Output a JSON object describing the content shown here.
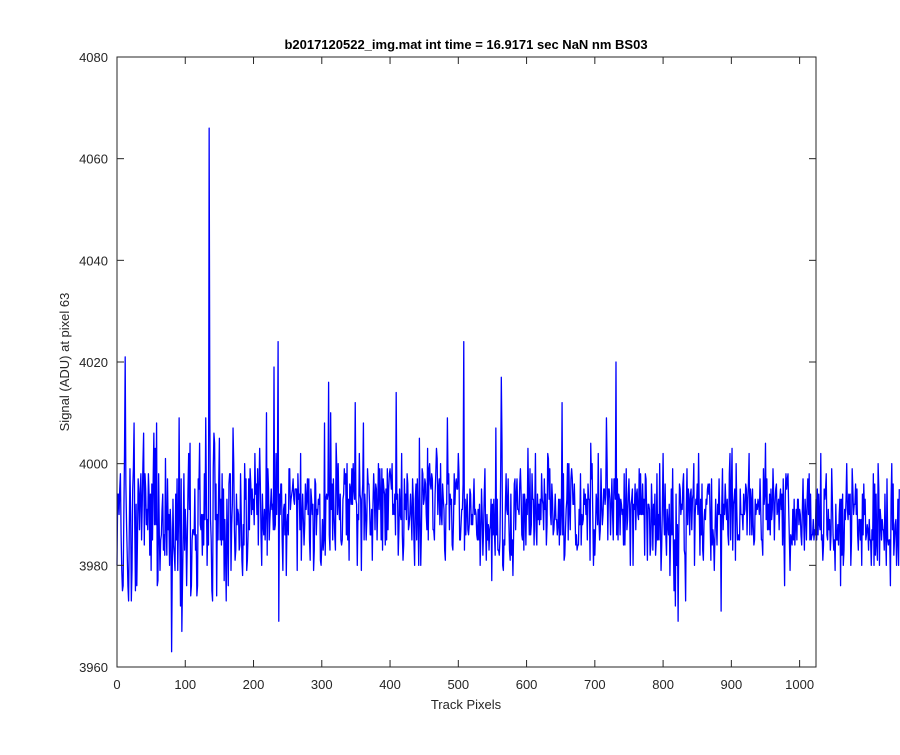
{
  "chart_data": {
    "type": "line",
    "title": "b2017120522_img.mat int time = 16.9171 sec  NaN nm BS03",
    "xlabel": "Track Pixels",
    "ylabel": "Signal (ADU) at pixel 63",
    "xlim": [
      0,
      1024
    ],
    "ylim": [
      3960,
      4080
    ],
    "xticks": [
      0,
      100,
      200,
      300,
      400,
      500,
      600,
      700,
      800,
      900,
      1000
    ],
    "yticks": [
      3960,
      3980,
      4000,
      4020,
      4040,
      4060,
      4080
    ],
    "grid": false,
    "line_color": "#0000ff",
    "n_points": 1024,
    "baseline_mean": 3992,
    "noise_range": [
      3963,
      4024
    ],
    "peaks": [
      {
        "x": 12,
        "y": 4021
      },
      {
        "x": 80,
        "y": 3963
      },
      {
        "x": 136,
        "y": 4066
      },
      {
        "x": 234,
        "y": 4024
      },
      {
        "x": 237,
        "y": 3969
      },
      {
        "x": 520,
        "y": 4024
      },
      {
        "x": 810,
        "y": 3969
      }
    ],
    "series": [
      {
        "x_start": 0,
        "x_step": 1,
        "values": [
          3980,
          3994,
          3994,
          3990,
          3995,
          3998,
          3986,
          3979,
          3975,
          3976,
          3990,
          4002,
          4021,
          3996,
          3988,
          3982,
          3976,
          3973,
          3987,
          3999,
          3990,
          3973,
          3979,
          3995,
          3999,
          4008,
          3988,
          3975,
          3992,
          3976,
          3985,
          3997,
          3994,
          3987,
          3995,
          3998,
          3985,
          3992,
          4000,
          4006,
          3984,
          3998,
          3995,
          3988,
          3991,
          3987,
          3998,
          3994,
          3982,
          3994,
          3979,
          3996,
          3985,
          3997,
          4006,
          3988,
          4003,
          3988,
          4008,
          3976,
          3977,
          3998,
          3986,
          3979,
          3985,
          3986,
          3991,
          3994,
          3983,
          3986,
          3982,
          4001,
          3988,
          3982,
          3997,
          3987,
          3990,
          3980,
          3991,
          3987,
          3963,
          3980,
          3993,
          3984,
          3982,
          3979,
          3994,
          3985,
          3997,
          3979,
          3988,
          4009,
          3988,
          3972,
          3997,
          3967,
          3977,
          3986,
          3998,
          3983,
          3991,
          3987,
          3976,
          3985,
          3995,
          4002,
          3991,
          4004,
          3974,
          3976,
          3985,
          3987,
          3987,
          3986,
          3995,
          3983,
          3986,
          3974,
          3976,
          3997,
          3995,
          4004,
          3988,
          3987,
          3990,
          3982,
          3990,
          3984,
          3998,
          3989,
          4009,
          3993,
          3980,
          3989,
          3984,
          4066,
          4009,
          3989,
          3985,
          3975,
          3973,
          3999,
          4006,
          4004,
          3989,
          3996,
          3974,
          3990,
          3985,
          3996,
          4005,
          3985,
          3993,
          3984,
          3998,
          3985,
          3995,
          3977,
          3989,
          3982,
          3973,
          3993,
          3986,
          3976,
          3996,
          3998,
          3998,
          3979,
          3988,
          3992,
          4007,
          4000,
          3987,
          3981,
          3983,
          3994,
          3988,
          3991,
          3990,
          3983,
          3984,
          3998,
          3990,
          3981,
          3978,
          3988,
          3984,
          4000,
          3993,
          3997,
          3979,
          3981,
          3986,
          3997,
          3987,
          3999,
          3996,
          3990,
          3995,
          3991,
          3993,
          3988,
          4002,
          3994,
          3996,
          3990,
          3999,
          3984,
          3995,
          4003,
          3996,
          3986,
          3980,
          3994,
          3988,
          3986,
          3991,
          3985,
          3990,
          4010,
          3982,
          3999,
          3995,
          3985,
          3989,
          3992,
          3995,
          3991,
          3992,
          3987,
          4019,
          3987,
          3988,
          4002,
          3990,
          3999,
          4024,
          3969,
          3994,
          3990,
          3996,
          3996,
          3985,
          3979,
          3991,
          3992,
          3986,
          3994,
          3978,
          3988,
          3990,
          3986,
          3999,
          3999,
          3991,
          3993,
          3994,
          3995,
          3997,
          3993,
          3992,
          3995,
          3995,
          3995,
          3979,
          3998,
          3993,
          3994,
          3987,
          4002,
          3981,
          3989,
          3994,
          3989,
          3984,
          3988,
          3996,
          3991,
          3993,
          3997,
          3990,
          3997,
          3985,
          3981,
          3995,
          3993,
          3990,
          3992,
          3979,
          3983,
          3997,
          3996,
          3986,
          3991,
          3990,
          3993,
          3992,
          3994,
          3981,
          3980,
          3984,
          3989,
          3983,
          3985,
          4008,
          3982,
          3993,
          3994,
          3993,
          3994,
          4016,
          3986,
          3983,
          4010,
          3991,
          3996,
          3985,
          3997,
          3990,
          3986,
          3983,
          4004,
          3999,
          3990,
          4000,
          3992,
          3989,
          3994,
          3985,
          3984,
          3985,
          3993,
          3994,
          3999,
          3996,
          3998,
          3986,
          4000,
          3985,
          3993,
          3981,
          3996,
          3995,
          3992,
          3999,
          3992,
          4000,
          3995,
          3993,
          4012,
          3993,
          3992,
          3980,
          3990,
          3989,
          4002,
          3994,
          3993,
          3979,
          3993,
          3996,
          4008,
          3985,
          3994,
          3991,
          3985,
          3989,
          3999,
          3996,
          3996,
          3992,
          3986,
          3986,
          3991,
          3981,
          3992,
          3998,
          3994,
          3987,
          3996,
          3995,
          3985,
          3992,
          4000,
          3991,
          3999,
          3994,
          3985,
          3999,
          3983,
          3997,
          3995,
          3994,
          3984,
          3995,
          3985,
          3999,
          3987,
          3995,
          3998,
          3999,
          3997,
          3995,
          4000,
          3990,
          3992,
          3990,
          3994,
          3986,
          4014,
          3993,
          3994,
          3982,
          3987,
          3995,
          3990,
          3989,
          4002,
          3986,
          3981,
          3984,
          3997,
          3991,
          3994,
          3989,
          3998,
          3996,
          3987,
          3988,
          3990,
          3994,
          3990,
          3985,
          3997,
          3993,
          3985,
          3980,
          3993,
          3996,
          3985,
          3997,
          3990,
          3980,
          4005,
          3990,
          3980,
          3987,
          3999,
          3998,
          3992,
          3993,
          3997,
          3996,
          3990,
          3987,
          4003,
          3985,
          3999,
          4000,
          3996,
          3995,
          3998,
          3997,
          3987,
          3987,
          3985,
          3994,
          3998,
          4003,
          4001,
          3990,
          3995,
          3997,
          3988,
          4000,
          3990,
          3988,
          3996,
          3993,
          3991,
          3983,
          3981,
          3992,
          3992,
          4009,
          3996,
          3998,
          3987,
          3994,
          3992,
          3993,
          3984,
          3983,
          3989,
          3998,
          3992,
          3996,
          3997,
          3995,
          3995,
          4002,
          3998,
          3985,
          3985,
          3988,
          3991,
          3991,
          3996,
          4024,
          3983,
          3993,
          3986,
          3991,
          3994,
          3987,
          3986,
          3988,
          3995,
          3994,
          3988,
          3990,
          3988,
          3992,
          3997,
          3990,
          3991,
          3990,
          3986,
          3985,
          3991,
          3985,
          3992,
          3980,
          3986,
          3995,
          3990,
          3982,
          3987,
          3994,
          3999,
          3987,
          3981,
          3990,
          3985,
          3988,
          3983,
          3987,
          3988,
          3993,
          3977,
          3992,
          3986,
          3993,
          3986,
          3982,
          4007,
          3986,
          3993,
          3983,
          3983,
          3982,
          3985,
          3997,
          4017,
          4004,
          3980,
          3979,
          3985,
          3984,
          3992,
          3998,
          3991,
          3990,
          3997,
          3989,
          3983,
          3981,
          3994,
          3982,
          3985,
          3978,
          3986,
          3996,
          3997,
          3987,
          3994,
          3997,
          3991,
          3991,
          3990,
          3996,
          3999,
          3994,
          3986,
          3985,
          3994,
          3983,
          3994,
          3992,
          3984,
          3993,
          3990,
          4003,
          3993,
          3986,
          3999,
          3986,
          3988,
          3998,
          3993,
          3993,
          3984,
          3991,
          4002,
          3987,
          3984,
          3994,
          3989,
          3992,
          3988,
          3993,
          3989,
          3998,
          3993,
          3992,
          3987,
          3997,
          3991,
          3994,
          3984,
          3988,
          4002,
          4001,
          3993,
          3999,
          3990,
          3988,
          3996,
          3993,
          3986,
          3987,
          3990,
          3994,
          3989,
          3989,
          3986,
          3988,
          3993,
          3984,
          3993,
          3986,
          3990,
          4012,
          3986,
          3998,
          3981,
          3982,
          3987,
          3991,
          3993,
          4000,
          3985,
          4000,
          3991,
          3987,
          3997,
          3999,
          3997,
          3992,
          3992,
          3996,
          3990,
          3984,
          3986,
          3983,
          3984,
          3984,
          3991,
          3988,
          3998,
          3984,
          3990,
          3988,
          3989,
          3995,
          3992,
          3994,
          3990,
          3993,
          3985,
          3996,
          3993,
          3993,
          3981,
          4004,
          3997,
          4000,
          3990,
          3980,
          3987,
          3982,
          3987,
          3994,
          3992,
          3988,
          4002,
          3989,
          3985,
          3987,
          3999,
          3992,
          3988,
          3990,
          3995,
          3995,
          3992,
          3994,
          4009,
          4000,
          3985,
          3995,
          3995,
          3993,
          3986,
          3992,
          3997,
          3990,
          3985,
          3997,
          3997,
          3993,
          4020,
          3986,
          3997,
          3985,
          3994,
          3993,
          3986,
          3993,
          3992,
          3990,
          3991,
          3984,
          3998,
          3984,
          3991,
          3999,
          3987,
          3989,
          3994,
          3997,
          3991,
          3980,
          3992,
          3993,
          3995,
          3980,
          3992,
          3991,
          3996,
          3987,
          3994,
          3995,
          3990,
          3989,
          3999,
          3990,
          3998,
          3990,
          3990,
          3996,
          3990,
          3993,
          3982,
          3998,
          3997,
          3990,
          3981,
          3992,
          3992,
          3991,
          3982,
          3984,
          3996,
          3991,
          3983,
          3992,
          3988,
          3994,
          3982,
          3985,
          3998,
          3985,
          3990,
          3985,
          4000,
          3989,
          3979,
          3984,
          3992,
          4002,
          3990,
          3986,
          3996,
          3986,
          3982,
          3991,
          3988,
          3986,
          3992,
          3978,
          3986,
          3995,
          3986,
          3999,
          3985,
          3975,
          3985,
          3972,
          3994,
          3980,
          3988,
          3969,
          3986,
          3996,
          3995,
          3990,
          3992,
          3991,
          3996,
          3998,
          3983,
          3982,
          3973,
          3991,
          3999,
          3988,
          3995,
          3993,
          3986,
          3994,
          3995,
          3987,
          3993,
          3994,
          4000,
          3980,
          3990,
          3993,
          3992,
          3996,
          3990,
          4002,
          3991,
          3982,
          3993,
          3986,
          3996,
          3983,
          3981,
          3989,
          3991,
          3989,
          3993,
          3992,
          3995,
          3996,
          3994,
          3996,
          3988,
          3981,
          3997,
          3984,
          3987,
          3985,
          3979,
          3986,
          3993,
          3988,
          3984,
          3992,
          3990,
          3997,
          3990,
          3990,
          3971,
          3992,
          3999,
          3987,
          3992,
          3990,
          3996,
          3992,
          3989,
          3993,
          3986,
          3984,
          3998,
          4002,
          3985,
          3995,
          4003,
          3983,
          3992,
          3993,
          3995,
          3981,
          4000,
          3991,
          3985,
          3986,
          3985,
          3985,
          3995,
          3990,
          3990,
          3990,
          3987,
          3994,
          3990,
          3991,
          3996,
          3995,
          3986,
          3993,
          3996,
          4002,
          3986,
          3995,
          3993,
          3986,
          3995,
          3988,
          3984,
          3985,
          3993,
          3990,
          3992,
          3991,
          3993,
          3992,
          3990,
          3997,
          3991,
          3985,
          3985,
          3982,
          3999,
          3992,
          3994,
          4004,
          3989,
          3997,
          3987,
          3992,
          3987,
          3994,
          3986,
          3995,
          3989,
          3991,
          3999,
          3994,
          3985,
          3992,
          3995,
          3996,
          3990,
          3991,
          3993,
          3987,
          3993,
          3995,
          3991,
          3994,
          3984,
          3997,
          3986,
          3976,
          3994,
          3998,
          3995,
          3997,
          3998,
          3991,
          3985,
          3979,
          3986,
          3985,
          3984,
          3991,
          3985,
          3993,
          3984,
          3988,
          3991,
          3985,
          3993,
          3993,
          3988,
          3991,
          3990,
          3986,
          3984,
          3991,
          3997,
          3989,
          3983,
          3993,
          3990,
          3985,
          3993,
          3997,
          3990,
          3998,
          3985,
          3994,
          3985,
          3986,
          3986,
          3989,
          3985,
          3987,
          3986,
          3993,
          3985,
          3995,
          3986,
          3994,
          3988,
          3987,
          4002,
          3985,
          3986,
          3981,
          3984,
          3995,
          3993,
          3995,
          3998,
          3986,
          3985,
          3991,
          3987,
          3989,
          3983,
          3986,
          3999,
          3993,
          3986,
          3983,
          3985,
          3979,
          3992,
          3985,
          3985,
          3988,
          3984,
          3990,
          3993,
          3976,
          3993,
          3982,
          3994,
          3980,
          3983,
          3991,
          3989,
          3993,
          4000,
          3991,
          3989,
          3994,
          3990,
          3994,
          3980,
          3985,
          3999,
          3995,
          3990,
          3992,
          3992,
          3996,
          3990,
          3995,
          3986,
          3983,
          3989,
          3989,
          3985,
          3989,
          3980,
          3994,
          3986,
          3996,
          3990,
          3993,
          3985,
          3986,
          3988,
          3987,
          3983,
          3989,
          3985,
          3985,
          3980,
          3987,
          3985,
          3998,
          3980,
          3996,
          3982,
          3994,
          3984,
          3981,
          4000,
          3995,
          3980,
          3991,
          3989,
          3985,
          3989,
          3987,
          3987,
          3983,
          3994,
          3986,
          3980,
          3997,
          3985,
          3984,
          3985,
          3985,
          3976,
          3993,
          4000,
          3987,
          3996,
          3982,
          3985,
          3988,
          3989,
          3980,
          3985,
          3993,
          3980,
          3995
        ]
      }
    ]
  }
}
